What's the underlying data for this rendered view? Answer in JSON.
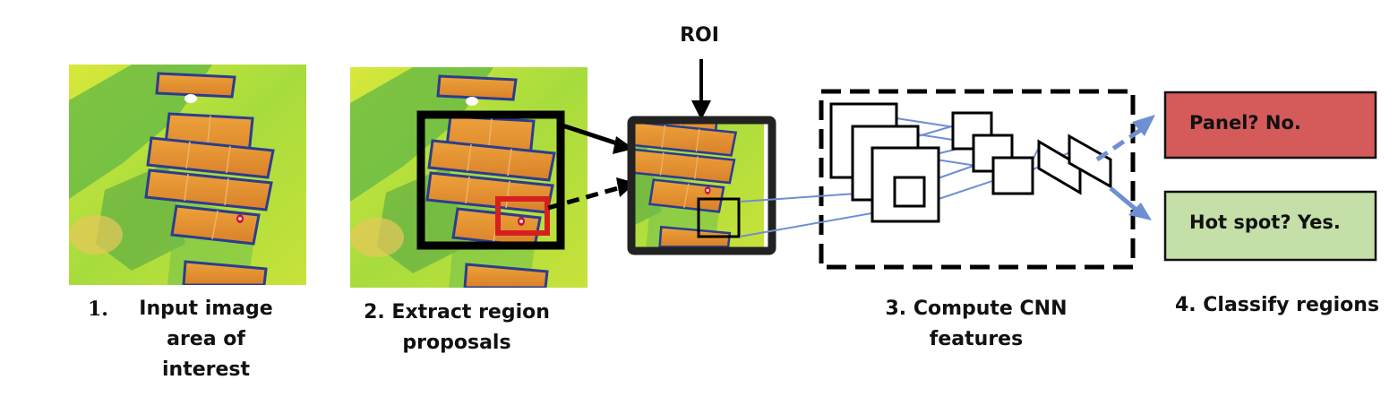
{
  "roi_label": "ROI",
  "steps": {
    "step1_number": "1.",
    "step1_text": [
      "Input image",
      "area of",
      "interest"
    ],
    "step2_text": [
      "2. Extract region",
      "proposals"
    ],
    "step3_text": [
      "3. Compute CNN",
      "features"
    ],
    "step4_text": "4. Classify regions"
  },
  "outputs": {
    "panel": "Panel? No.",
    "hotspot": "Hot spot? Yes."
  },
  "colors": {
    "panel_box": "#d55a5a",
    "hotspot_box": "#c4dfa8",
    "connector_blue": "#6e8fd1",
    "proposal_red": "#d62020",
    "thermal_background": "#c6e33a",
    "thermal_panel": "#e28a2a"
  }
}
